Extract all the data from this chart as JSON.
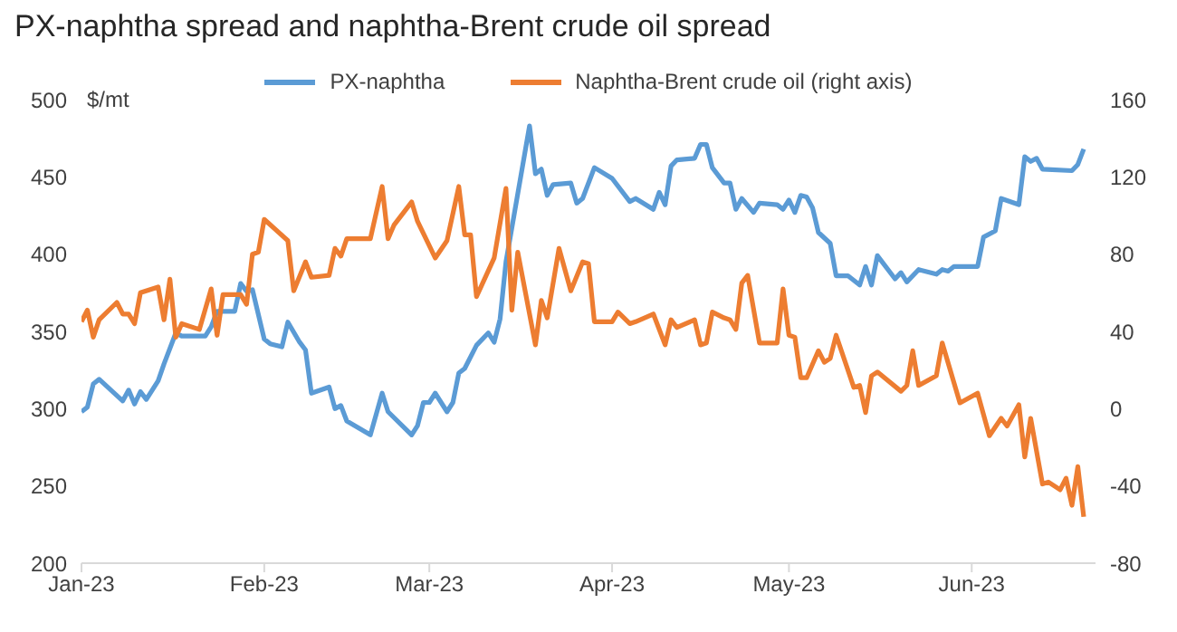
{
  "chart_data": {
    "type": "line",
    "title": "PX-naphtha spread and naphtha-Brent crude oil spread",
    "ylabel": "$/mt",
    "legend": "top",
    "marker": "none",
    "line_style": "solid",
    "xlim": [
      "2023-01-01",
      "2023-06-22"
    ],
    "xticks": [
      {
        "value": "2023-01-01",
        "label": "Jan-23"
      },
      {
        "value": "2023-02-01",
        "label": "Feb-23"
      },
      {
        "value": "2023-03-01",
        "label": "Mar-23"
      },
      {
        "value": "2023-04-01",
        "label": "Apr-23"
      },
      {
        "value": "2023-05-01",
        "label": "May-23"
      },
      {
        "value": "2023-06-01",
        "label": "Jun-23"
      }
    ],
    "ylim": [
      200,
      500
    ],
    "yticks": [
      200,
      250,
      300,
      350,
      400,
      450,
      500
    ],
    "y2lim": [
      -80,
      160
    ],
    "y2ticks": [
      -80,
      -40,
      0,
      40,
      80,
      120,
      160
    ],
    "series": [
      {
        "name": "PX-naphtha",
        "color": "#5b9bd5",
        "x": [
          "2023-01-01",
          "2023-01-02",
          "2023-01-03",
          "2023-01-04",
          "2023-01-08",
          "2023-01-09",
          "2023-01-10",
          "2023-01-11",
          "2023-01-12",
          "2023-01-14",
          "2023-01-15",
          "2023-01-17",
          "2023-01-18",
          "2023-01-22",
          "2023-01-23",
          "2023-01-24",
          "2023-01-27",
          "2023-01-28",
          "2023-01-29",
          "2023-01-30",
          "2023-02-01",
          "2023-02-02",
          "2023-02-04",
          "2023-02-05",
          "2023-02-07",
          "2023-02-08",
          "2023-02-09",
          "2023-02-12",
          "2023-02-13",
          "2023-02-14",
          "2023-02-15",
          "2023-02-19",
          "2023-02-21",
          "2023-02-22",
          "2023-02-26",
          "2023-02-27",
          "2023-02-28",
          "2023-03-01",
          "2023-03-02",
          "2023-03-04",
          "2023-03-05",
          "2023-03-06",
          "2023-03-07",
          "2023-03-09",
          "2023-03-11",
          "2023-03-12",
          "2023-03-13",
          "2023-03-14",
          "2023-03-18",
          "2023-03-19",
          "2023-03-20",
          "2023-03-21",
          "2023-03-22",
          "2023-03-25",
          "2023-03-26",
          "2023-03-27",
          "2023-03-29",
          "2023-04-01",
          "2023-04-04",
          "2023-04-05",
          "2023-04-08",
          "2023-04-09",
          "2023-04-10",
          "2023-04-11",
          "2023-04-12",
          "2023-04-15",
          "2023-04-16",
          "2023-04-17",
          "2023-04-18",
          "2023-04-20",
          "2023-04-21",
          "2023-04-22",
          "2023-04-23",
          "2023-04-25",
          "2023-04-26",
          "2023-04-29",
          "2023-04-30",
          "2023-05-01",
          "2023-05-02",
          "2023-05-03",
          "2023-05-04",
          "2023-05-05",
          "2023-05-06",
          "2023-05-08",
          "2023-05-09",
          "2023-05-11",
          "2023-05-13",
          "2023-05-14",
          "2023-05-15",
          "2023-05-16",
          "2023-05-19",
          "2023-05-20",
          "2023-05-21",
          "2023-05-23",
          "2023-05-26",
          "2023-05-27",
          "2023-05-28",
          "2023-05-29",
          "2023-06-02",
          "2023-06-03",
          "2023-06-05",
          "2023-06-06",
          "2023-06-09",
          "2023-06-10",
          "2023-06-11",
          "2023-06-12",
          "2023-06-13",
          "2023-06-18",
          "2023-06-19",
          "2023-06-20"
        ],
        "values": [
          298,
          301,
          316,
          319,
          305,
          312,
          303,
          311,
          306,
          318,
          329,
          349,
          347,
          347,
          353,
          363,
          363,
          381,
          376,
          377,
          345,
          342,
          340,
          356,
          343,
          338,
          310,
          314,
          300,
          302,
          292,
          283,
          310,
          298,
          283,
          289,
          304,
          304,
          310,
          298,
          304,
          323,
          326,
          341,
          349,
          343,
          358,
          395,
          483,
          452,
          455,
          438,
          445,
          446,
          433,
          436,
          456,
          449,
          434,
          436,
          429,
          440,
          432,
          457,
          461,
          462,
          471,
          471,
          456,
          446,
          446,
          429,
          436,
          427,
          433,
          432,
          429,
          435,
          427,
          438,
          437,
          430,
          414,
          407,
          386,
          386,
          380,
          392,
          380,
          399,
          384,
          388,
          382,
          390,
          387,
          390,
          389,
          392,
          392,
          411,
          415,
          436,
          432,
          463,
          460,
          462,
          455,
          454,
          458,
          468
        ]
      },
      {
        "name": "Naphtha-Brent crude oil (right axis)",
        "color": "#ed7d31",
        "axis": "y2",
        "x": [
          "2023-01-01",
          "2023-01-02",
          "2023-01-03",
          "2023-01-04",
          "2023-01-07",
          "2023-01-08",
          "2023-01-09",
          "2023-01-10",
          "2023-01-11",
          "2023-01-14",
          "2023-01-15",
          "2023-01-16",
          "2023-01-17",
          "2023-01-18",
          "2023-01-21",
          "2023-01-23",
          "2023-01-24",
          "2023-01-25",
          "2023-01-28",
          "2023-01-29",
          "2023-01-30",
          "2023-01-31",
          "2023-02-01",
          "2023-02-05",
          "2023-02-06",
          "2023-02-08",
          "2023-02-09",
          "2023-02-12",
          "2023-02-13",
          "2023-02-14",
          "2023-02-15",
          "2023-02-19",
          "2023-02-21",
          "2023-02-22",
          "2023-02-23",
          "2023-02-26",
          "2023-02-27",
          "2023-03-02",
          "2023-03-04",
          "2023-03-06",
          "2023-03-07",
          "2023-03-08",
          "2023-03-09",
          "2023-03-12",
          "2023-03-14",
          "2023-03-15",
          "2023-03-16",
          "2023-03-19",
          "2023-03-20",
          "2023-03-21",
          "2023-03-23",
          "2023-03-25",
          "2023-03-27",
          "2023-03-28",
          "2023-03-29",
          "2023-04-01",
          "2023-04-02",
          "2023-04-04",
          "2023-04-05",
          "2023-04-08",
          "2023-04-10",
          "2023-04-11",
          "2023-04-12",
          "2023-04-15",
          "2023-04-16",
          "2023-04-17",
          "2023-04-18",
          "2023-04-20",
          "2023-04-21",
          "2023-04-22",
          "2023-04-23",
          "2023-04-24",
          "2023-04-26",
          "2023-04-29",
          "2023-04-30",
          "2023-05-01",
          "2023-05-02",
          "2023-05-03",
          "2023-05-04",
          "2023-05-06",
          "2023-05-07",
          "2023-05-08",
          "2023-05-09",
          "2023-05-12",
          "2023-05-13",
          "2023-05-14",
          "2023-05-15",
          "2023-05-16",
          "2023-05-20",
          "2023-05-21",
          "2023-05-22",
          "2023-05-23",
          "2023-05-26",
          "2023-05-27",
          "2023-05-30",
          "2023-06-02",
          "2023-06-04",
          "2023-06-06",
          "2023-06-07",
          "2023-06-09",
          "2023-06-10",
          "2023-06-11",
          "2023-06-13",
          "2023-06-14",
          "2023-06-16",
          "2023-06-17",
          "2023-06-18",
          "2023-06-19",
          "2023-06-20"
        ],
        "values": [
          45,
          51,
          37,
          46,
          55,
          49,
          49,
          44,
          60,
          63,
          46,
          67,
          37,
          44,
          41,
          62,
          38,
          59,
          59,
          54,
          80,
          81,
          98,
          87,
          61,
          76,
          68,
          69,
          83,
          79,
          88,
          88,
          115,
          88,
          95,
          107,
          97,
          78,
          87,
          115,
          90,
          90,
          58,
          78,
          114,
          51,
          81,
          33,
          56,
          47,
          83,
          61,
          76,
          75,
          45,
          45,
          50,
          44,
          45,
          49,
          33,
          46,
          42,
          46,
          33,
          34,
          50,
          47,
          46,
          41,
          65,
          69,
          34,
          34,
          62,
          38,
          37,
          16,
          16,
          30,
          24,
          26,
          38,
          11,
          12,
          -2,
          17,
          19,
          9,
          12,
          30,
          12,
          17,
          34,
          3,
          8,
          -14,
          -5,
          -9,
          2,
          -25,
          -5,
          -39,
          -38,
          -42,
          -36,
          -50,
          -30,
          -56
        ]
      }
    ]
  }
}
